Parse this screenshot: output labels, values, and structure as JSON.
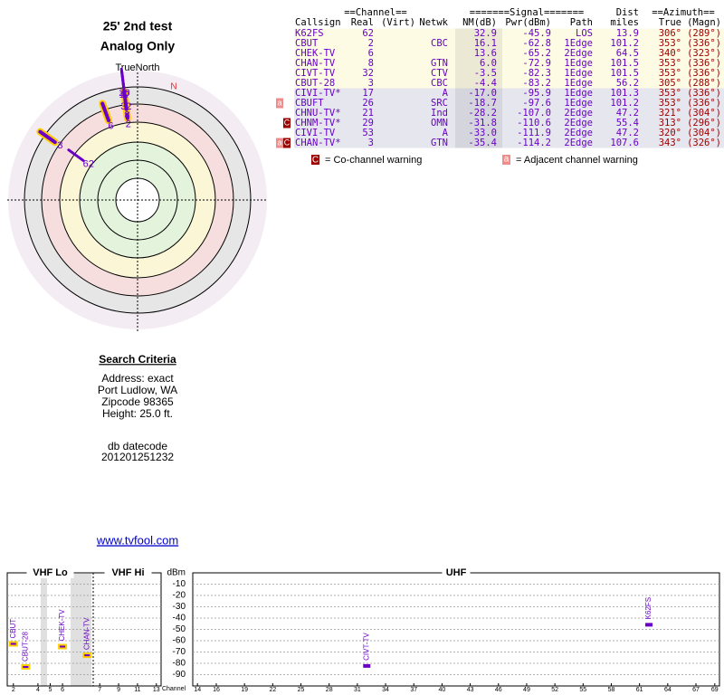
{
  "header": {
    "title": "25' 2nd test",
    "subtitle": "Analog Only"
  },
  "polar": {
    "north_label": "TrueNorth",
    "magnetic_north_label": "N",
    "stations": [
      {
        "label": "62",
        "azimuth": 306,
        "nm": 32.9,
        "highlight": false
      },
      {
        "label": "2",
        "azimuth": 353,
        "nm": 16.1,
        "highlight": true
      },
      {
        "label": "6",
        "azimuth": 340,
        "nm": 13.6,
        "highlight": true
      },
      {
        "label": "8",
        "azimuth": 353,
        "nm": 6.0,
        "highlight": true
      },
      {
        "label": "32",
        "azimuth": 353,
        "nm": -3.5,
        "highlight": false
      },
      {
        "label": "3",
        "azimuth": 305,
        "nm": -4.4,
        "highlight": true
      },
      {
        "label": "17",
        "azimuth": 353,
        "nm": -17.0,
        "highlight": false
      },
      {
        "label": "26",
        "azimuth": 353,
        "nm": -18.7,
        "highlight": false
      }
    ]
  },
  "table": {
    "group_headers": [
      "==Channel==",
      "=======Signal=======",
      "Dist",
      "==Azimuth=="
    ],
    "columns": [
      "Callsign",
      "Real",
      "(Virt)",
      "Netwk",
      "NM(dB)",
      "Pwr(dBm)",
      "Path",
      "miles",
      "True",
      "(Magn)"
    ],
    "rows": [
      {
        "color": "#fdfbe4",
        "cells": [
          "K62FS",
          "62",
          null,
          null,
          "32.9",
          "-45.9",
          "LOS",
          "13.9",
          "306°",
          "(289°)"
        ]
      },
      {
        "color": "#fdfbe4",
        "cells": [
          "CBUT",
          "2",
          null,
          "CBC",
          "16.1",
          "-62.8",
          "1Edge",
          "101.2",
          "353°",
          "(336°)"
        ]
      },
      {
        "color": "#fdfbe4",
        "cells": [
          "CHEK-TV",
          "6",
          null,
          null,
          "13.6",
          "-65.2",
          "2Edge",
          "64.5",
          "340°",
          "(323°)"
        ]
      },
      {
        "color": "#fdfbe4",
        "cells": [
          "CHAN-TV",
          "8",
          null,
          "GTN",
          "6.0",
          "-72.9",
          "1Edge",
          "101.5",
          "353°",
          "(336°)"
        ]
      },
      {
        "color": "#fdfbe4",
        "cells": [
          "CIVT-TV",
          "32",
          null,
          "CTV",
          "-3.5",
          "-82.3",
          "1Edge",
          "101.5",
          "353°",
          "(336°)"
        ]
      },
      {
        "color": "#fdfbe4",
        "cells": [
          "CBUT-28",
          "3",
          null,
          "CBC",
          "-4.4",
          "-83.2",
          "1Edge",
          "56.2",
          "305°",
          "(288°)"
        ]
      },
      {
        "color": "#e6e6ee",
        "cells": [
          "CIVI-TV*",
          "17",
          null,
          "A",
          "-17.0",
          "-95.9",
          "1Edge",
          "101.3",
          "353°",
          "(336°)"
        ]
      },
      {
        "color": "#e6e6ee",
        "flags": [
          "a"
        ],
        "cells": [
          "CBUFT",
          "26",
          null,
          "SRC",
          "-18.7",
          "-97.6",
          "1Edge",
          "101.2",
          "353°",
          "(336°)"
        ]
      },
      {
        "color": "#e6e6ee",
        "cells": [
          "CHNU-TV*",
          "21",
          null,
          "Ind",
          "-28.2",
          "-107.0",
          "2Edge",
          "47.2",
          "321°",
          "(304°)"
        ]
      },
      {
        "color": "#e6e6ee",
        "flags": [
          "C"
        ],
        "cells": [
          "CHNM-TV*",
          "29",
          null,
          "OMN",
          "-31.8",
          "-110.6",
          "2Edge",
          "55.4",
          "313°",
          "(296°)"
        ]
      },
      {
        "color": "#e6e6ee",
        "cells": [
          "CIVI-TV",
          "53",
          null,
          "A",
          "-33.0",
          "-111.9",
          "2Edge",
          "47.2",
          "320°",
          "(304°)"
        ]
      },
      {
        "color": "#e6e6ee",
        "flags": [
          "a",
          "C"
        ],
        "cells": [
          "CHAN-TV*",
          "3",
          null,
          "GTN",
          "-35.4",
          "-114.2",
          "2Edge",
          "107.6",
          "343°",
          "(326°)"
        ]
      }
    ]
  },
  "legend": {
    "co_channel": {
      "icon": "C",
      "text": "= Co-channel warning"
    },
    "adjacent": {
      "icon": "a",
      "text": "= Adjacent channel warning"
    }
  },
  "search": {
    "title": "Search Criteria",
    "lines": [
      "Address: exact",
      "Port Ludlow, WA",
      "Zipcode 98365",
      "Height: 25.0 ft."
    ],
    "datecode_label": "db datecode",
    "datecode": "201201251232",
    "link": "www.tvfool.com"
  },
  "spectrum": {
    "y_label": "dBm",
    "x_label": "Channel",
    "ylim": [
      -100,
      0
    ],
    "yticks": [
      -10,
      -20,
      -30,
      -40,
      -50,
      -60,
      -70,
      -80,
      -90
    ],
    "sections": [
      {
        "label": "VHF Lo",
        "xlim": [
          1.5,
          8.5
        ],
        "xticks": [
          2,
          4,
          5,
          6
        ]
      },
      {
        "label": "VHF Hi",
        "xlim": [
          6.5,
          13.5
        ],
        "xticks": [
          7,
          9,
          11,
          13
        ]
      },
      {
        "label": "UHF",
        "xlim": [
          13.5,
          69.5
        ],
        "xticks": [
          14,
          16,
          19,
          22,
          25,
          28,
          31,
          34,
          37,
          40,
          43,
          46,
          49,
          52,
          55,
          58,
          61,
          64,
          67,
          69
        ]
      }
    ],
    "stations": [
      {
        "label": "CBUT",
        "channel": 2,
        "dbm": -62.8,
        "highlight": true
      },
      {
        "label": "CBUT-28",
        "channel": 3,
        "dbm": -83.2,
        "highlight": true
      },
      {
        "label": "CHEK-TV",
        "channel": 6,
        "dbm": -65.2,
        "highlight": true
      },
      {
        "label": "CHAN-TV",
        "channel": 8,
        "dbm": -72.9,
        "highlight": true
      },
      {
        "label": "CIVT-TV",
        "channel": 32,
        "dbm": -82.3,
        "highlight": false
      },
      {
        "label": "K62FS",
        "channel": 62,
        "dbm": -45.9,
        "highlight": false
      }
    ]
  }
}
